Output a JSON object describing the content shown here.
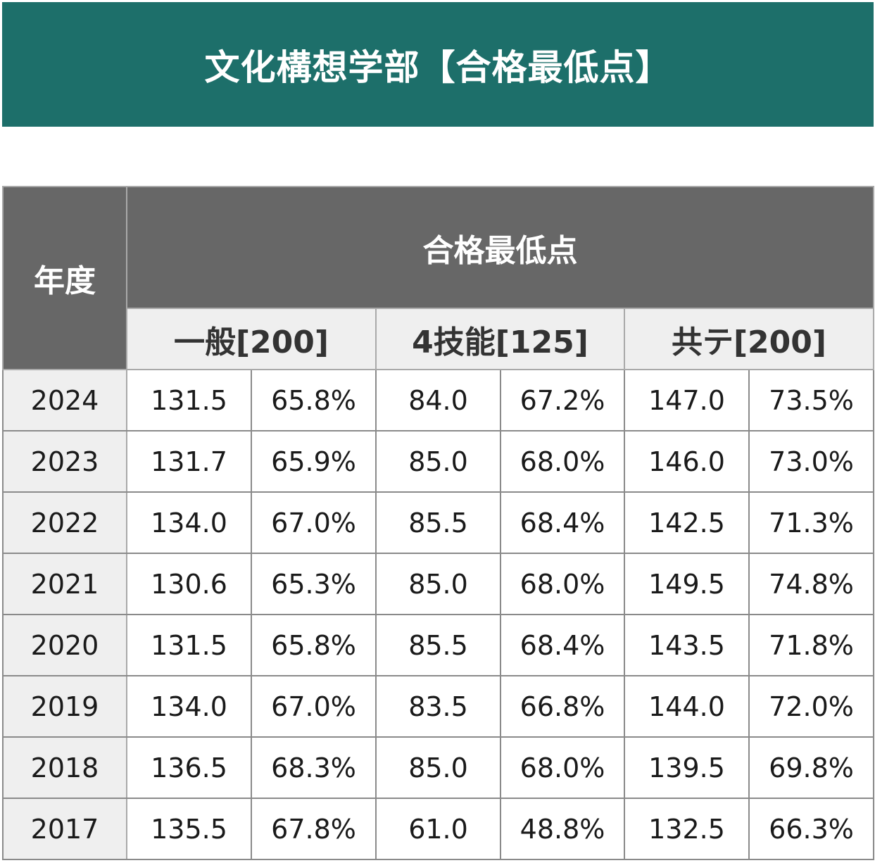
{
  "header": {
    "title": "文化構想学部【合格最低点】"
  },
  "table": {
    "year_label": "年度",
    "main_label": "合格最低点",
    "groups": [
      "一般[200]",
      "4技能[125]",
      "共テ[200]"
    ],
    "rows": [
      {
        "year": "2024",
        "cells": [
          "131.5",
          "65.8%",
          "84.0",
          "67.2%",
          "147.0",
          "73.5%"
        ]
      },
      {
        "year": "2023",
        "cells": [
          "131.7",
          "65.9%",
          "85.0",
          "68.0%",
          "146.0",
          "73.0%"
        ]
      },
      {
        "year": "2022",
        "cells": [
          "134.0",
          "67.0%",
          "85.5",
          "68.4%",
          "142.5",
          "71.3%"
        ]
      },
      {
        "year": "2021",
        "cells": [
          "130.6",
          "65.3%",
          "85.0",
          "68.0%",
          "149.5",
          "74.8%"
        ]
      },
      {
        "year": "2020",
        "cells": [
          "131.5",
          "65.8%",
          "85.5",
          "68.4%",
          "143.5",
          "71.8%"
        ]
      },
      {
        "year": "2019",
        "cells": [
          "134.0",
          "67.0%",
          "83.5",
          "66.8%",
          "144.0",
          "72.0%"
        ]
      },
      {
        "year": "2018",
        "cells": [
          "136.5",
          "68.3%",
          "85.0",
          "68.0%",
          "139.5",
          "69.8%"
        ]
      },
      {
        "year": "2017",
        "cells": [
          "135.5",
          "67.8%",
          "61.0",
          "48.8%",
          "132.5",
          "66.3%"
        ]
      }
    ]
  },
  "colors": {
    "banner": "#1d6f6a",
    "header_dark": "#676767",
    "header_light": "#efefef"
  }
}
